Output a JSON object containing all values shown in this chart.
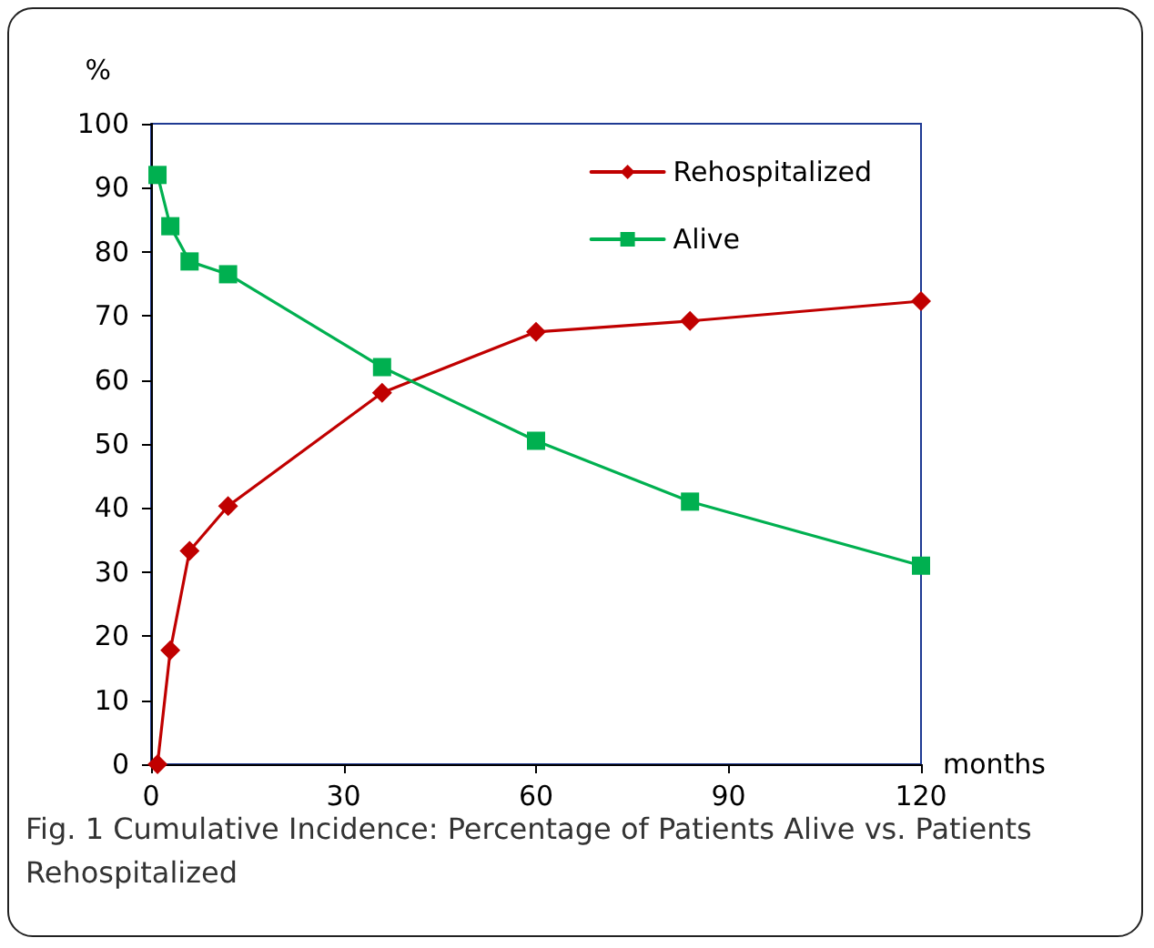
{
  "chart_data": {
    "type": "line",
    "xlabel": "months",
    "ylabel": "%",
    "annotations": [
      "Fig. 1 Cumulative Incidence: Percentage of Patients Alive vs. Patients Rehospitalized"
    ],
    "xlim": [
      0,
      120
    ],
    "xticks": [
      0,
      30,
      60,
      90,
      120
    ],
    "ylim": [
      0,
      100
    ],
    "yticks": [
      0,
      10,
      20,
      30,
      40,
      50,
      60,
      70,
      80,
      90,
      100
    ],
    "grid": false,
    "legend": "top right",
    "line_style": "solid",
    "series": [
      {
        "name": "Rehospitalized",
        "color": "#c00000",
        "marker": "diamond",
        "x": [
          1,
          3,
          6,
          12,
          36,
          60,
          84,
          120
        ],
        "values": [
          0,
          17.8,
          33.3,
          40.3,
          58,
          67.5,
          69.2,
          72.3
        ]
      },
      {
        "name": "Alive",
        "color": "#00b050",
        "marker": "square",
        "x": [
          1,
          3,
          6,
          12,
          36,
          60,
          84,
          120
        ],
        "values": [
          92,
          84,
          78.5,
          76.5,
          62,
          50.5,
          41,
          31
        ]
      }
    ]
  }
}
